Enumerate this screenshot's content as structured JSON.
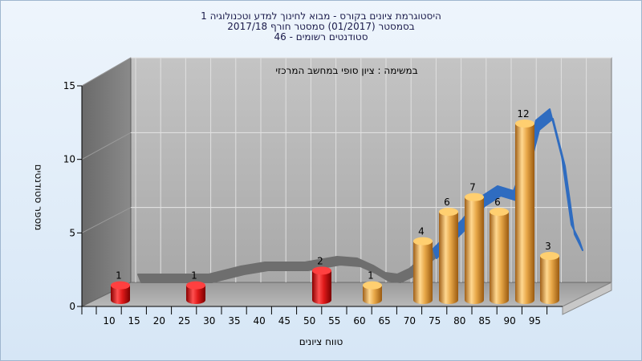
{
  "titles": {
    "line1": "היסטוגרמת ציונים בקורס - מבוא לחינוך למדע וטכנולוגיה 1",
    "line2": "בסמסטר  (01/2017)  סמסטר חורף  2017/18",
    "line3": "סטודנטים רשומים - 46"
  },
  "chart_data": {
    "type": "bar",
    "title": "",
    "annotation": "במשימה : ציון סופי במחשב המרכזי",
    "xlabel": "טווח ציונים",
    "ylabel": "מספר סטודנטים",
    "ylim": [
      0,
      15
    ],
    "yticks": [
      0,
      5,
      10,
      15
    ],
    "xticks": [
      10,
      15,
      20,
      25,
      30,
      35,
      40,
      45,
      50,
      55,
      60,
      65,
      70,
      75,
      80,
      85,
      90,
      95
    ],
    "grid": true,
    "bars": [
      {
        "x": 10,
        "value": 1,
        "label": "1",
        "color": "#e02020"
      },
      {
        "x": 25,
        "value": 1,
        "label": "1",
        "color": "#e02020"
      },
      {
        "x": 50,
        "value": 2,
        "label": "2",
        "color": "#e02020"
      },
      {
        "x": 60,
        "value": 1,
        "label": "1",
        "color": "#e8a848"
      },
      {
        "x": 70,
        "value": 4,
        "label": "4",
        "color": "#e8a848"
      },
      {
        "x": 75,
        "value": 6,
        "label": "6",
        "color": "#e8a848"
      },
      {
        "x": 80,
        "value": 7,
        "label": "7",
        "color": "#e8a848"
      },
      {
        "x": 85,
        "value": 6,
        "label": "6",
        "color": "#e8a848"
      },
      {
        "x": 90,
        "value": 12,
        "label": "12",
        "color": "#e8a848"
      },
      {
        "x": 95,
        "value": 3,
        "label": "3",
        "color": "#e8a848"
      }
    ],
    "trend": {
      "grey_color": "#6e6e6e",
      "blue_color": "#2f6cc0"
    }
  }
}
